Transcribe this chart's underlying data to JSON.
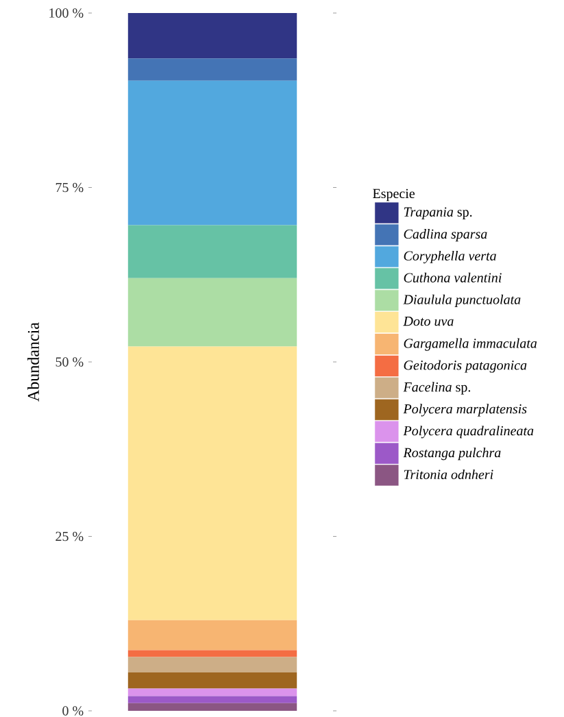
{
  "chart_data": {
    "type": "bar",
    "stacked": true,
    "ylabel": "Abundancia",
    "legend_title": "Especie",
    "legend": "right",
    "categories": [
      null
    ],
    "ylim": [
      0,
      100
    ],
    "yticks": [
      {
        "value": 0,
        "label": "0 %"
      },
      {
        "value": 25,
        "label": "25 %"
      },
      {
        "value": 50,
        "label": "50 %"
      },
      {
        "value": 75,
        "label": "75 %"
      },
      {
        "value": 100,
        "label": "100 %"
      }
    ],
    "series": [
      {
        "name": "*Tritonia odnheri*",
        "color": "#8b5683",
        "values": [
          1.1
        ]
      },
      {
        "name": "*Rostanga pulchra*",
        "color": "#9c59c8",
        "values": [
          1.0
        ]
      },
      {
        "name": "*Polycera quadralineata*",
        "color": "#db93ec",
        "values": [
          1.1
        ]
      },
      {
        "name": "*Polycera marplatensis*",
        "color": "#9e6620",
        "values": [
          2.3
        ]
      },
      {
        "name": "*Facelina* sp.",
        "color": "#cdae87",
        "values": [
          2.2
        ]
      },
      {
        "name": "*Geitodoris patagonica*",
        "color": "#f46d43",
        "values": [
          1.0
        ]
      },
      {
        "name": "*Gargamella immaculata*",
        "color": "#f7b572",
        "values": [
          4.3
        ]
      },
      {
        "name": "*Doto uva*",
        "color": "#fee496",
        "values": [
          39.2
        ]
      },
      {
        "name": "*Diaulula punctuolata*",
        "color": "#acdda4",
        "values": [
          9.8
        ]
      },
      {
        "name": "*Cuthona valentini*",
        "color": "#66c2a5",
        "values": [
          7.6
        ]
      },
      {
        "name": "*Coryphella verta*",
        "color": "#52a8de",
        "values": [
          20.7
        ]
      },
      {
        "name": "*Cadlina sparsa*",
        "color": "#4474b5",
        "values": [
          3.2
        ]
      },
      {
        "name": "*Trapania* sp.",
        "color": "#303585",
        "values": [
          6.5
        ]
      }
    ]
  }
}
